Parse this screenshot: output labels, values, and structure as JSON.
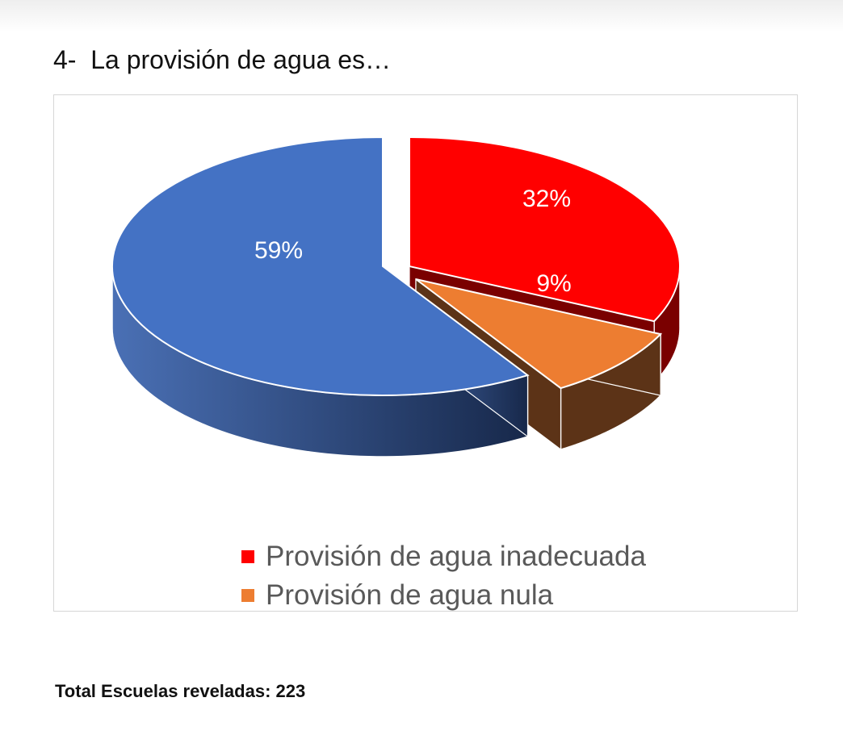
{
  "page": {
    "heading": "4-  La provisión de agua es…",
    "footer": "Total Escuelas reveladas: 223"
  },
  "chart_data": {
    "type": "pie",
    "style": "3d-exploded",
    "slices": [
      {
        "label": "",
        "value": 59,
        "display": "59%",
        "color": "#4472C4",
        "side_color": "#2F4F8F"
      },
      {
        "label": "Provisión de agua inadecuada",
        "value": 32,
        "display": "32%",
        "color": "#FF0000",
        "side_color": "#7A0000"
      },
      {
        "label": "Provisión de agua nula",
        "value": 9,
        "display": "9%",
        "color": "#ED7D31",
        "side_color": "#5C3317"
      }
    ],
    "legend": [
      {
        "label": "Provisión de agua inadecuada",
        "color": "#FF0000"
      },
      {
        "label": "Provisión de agua nula",
        "color": "#ED7D31"
      }
    ],
    "legend_position": "bottom"
  }
}
